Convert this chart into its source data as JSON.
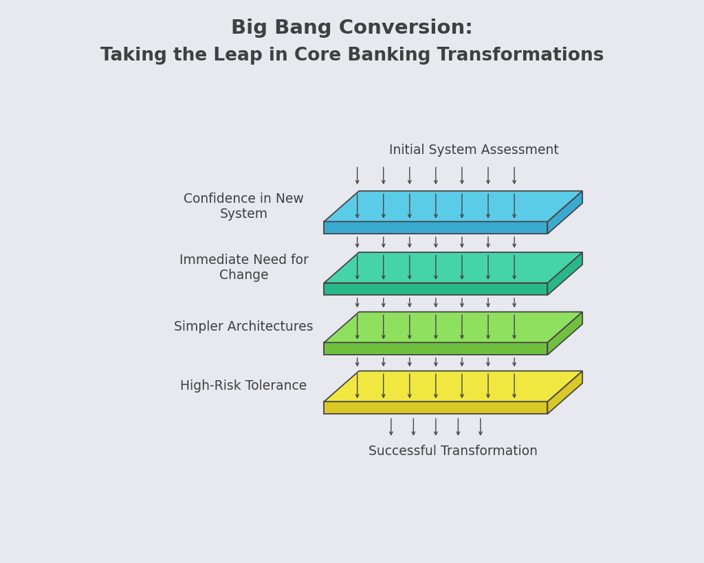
{
  "title_line1": "Big Bang Conversion:",
  "title_line2": "Taking the Leap in Core Banking Transformations",
  "background_color": "#e8e8ef",
  "text_color": "#404040",
  "layers": [
    {
      "label": "Confidence in New\nSystem",
      "face_color": "#5bcce8",
      "side_color": "#3aaad0"
    },
    {
      "label": "Immediate Need for\nChange",
      "face_color": "#45d4a8",
      "side_color": "#28b888"
    },
    {
      "label": "Simpler Architectures",
      "face_color": "#90e060",
      "side_color": "#70c040"
    },
    {
      "label": "High-Risk Tolerance",
      "face_color": "#f0e840",
      "side_color": "#d8c828"
    }
  ],
  "top_label": "Initial System Assessment",
  "bottom_label": "Successful Transformation",
  "arrow_color": "#454545",
  "edge_color": "#454545"
}
